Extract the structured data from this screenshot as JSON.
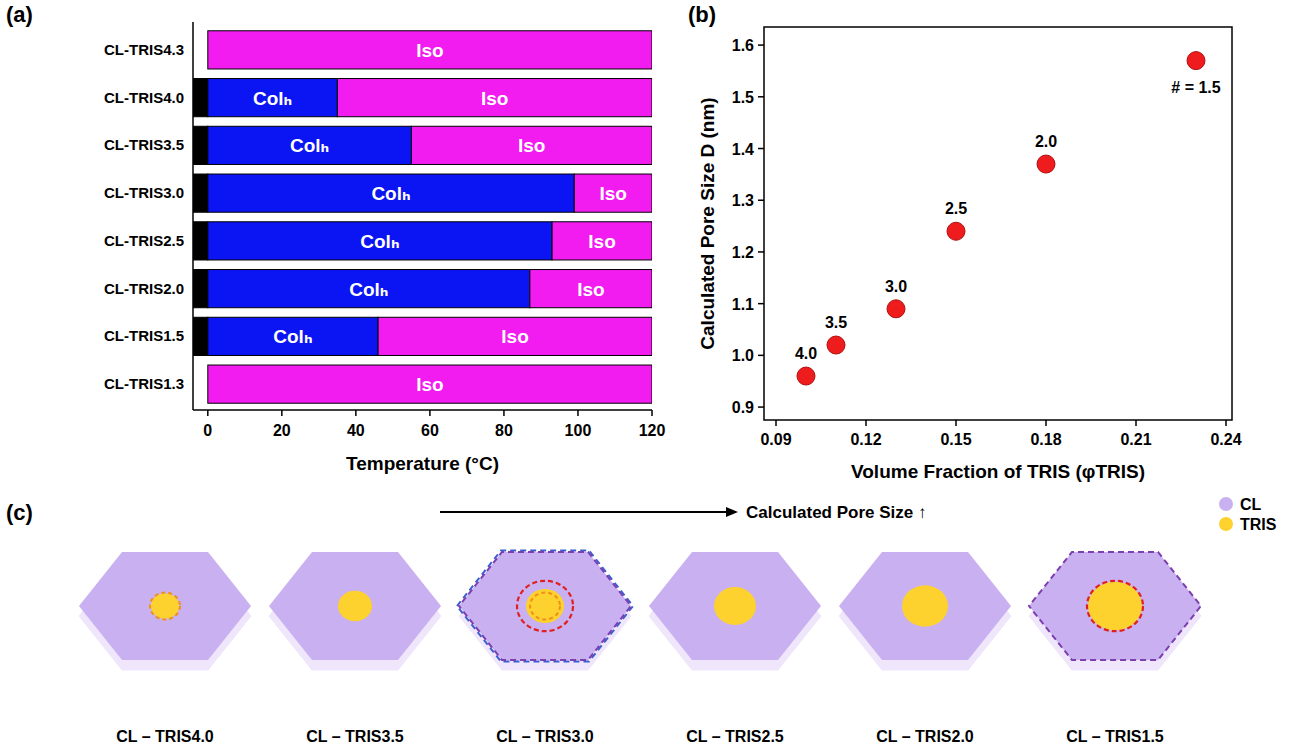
{
  "chart_data": [
    {
      "type": "bar",
      "panel_label": "(a)",
      "orientation": "horizontal",
      "stacked": true,
      "categories": [
        "CL-TRIS4.3",
        "CL-TRIS4.0",
        "CL-TRIS3.5",
        "CL-TRIS3.0",
        "CL-TRIS2.5",
        "CL-TRIS2.0",
        "CL-TRIS1.5",
        "CL-TRIS1.3"
      ],
      "series": [
        {
          "color": "#000000",
          "values": [
            null,
            -4,
            -4,
            -4,
            -4,
            -4,
            -4,
            null
          ]
        },
        {
          "name": "Colₕ",
          "color": "#0b14f2",
          "values": [
            null,
            35,
            55,
            99,
            93,
            87,
            46,
            null
          ]
        },
        {
          "name": "Iso",
          "color": "#f21cf0",
          "values": [
            120,
            85,
            65,
            21,
            27,
            33,
            74,
            120
          ]
        }
      ],
      "xlabel": "Temperature (°C)",
      "xlim": [
        -4,
        120
      ],
      "xticks": [
        0,
        20,
        40,
        60,
        80,
        100,
        120
      ]
    },
    {
      "type": "scatter",
      "panel_label": "(b)",
      "xlabel": "Volume Fraction of TRIS (φTRIS)",
      "ylabel": "Calculated Pore Size D (nm)",
      "xlim": [
        0.086,
        0.242
      ],
      "ylim": [
        0.875,
        1.635
      ],
      "xticks": [
        0.09,
        0.12,
        0.15,
        0.18,
        0.21,
        0.24
      ],
      "yticks": [
        0.9,
        {
          "value": 1,
          "label": "1.0"
        },
        1.1,
        1.2,
        1.3,
        1.4,
        1.5,
        1.6
      ],
      "series": [
        {
          "color": "#ee1c1c",
          "marker": "circle",
          "x": [
            0.1,
            0.11,
            0.13,
            0.15,
            0.18,
            0.23
          ],
          "values": [
            0.96,
            1.02,
            1.09,
            1.24,
            1.37,
            1.57
          ],
          "point_labels": [
            "4.0",
            "3.5",
            "3.0",
            "2.5",
            "2.0",
            "# = 1.5"
          ]
        }
      ]
    }
  ],
  "diagram": {
    "panel_label": "(c)",
    "title": "Calculated Pore Size ↑",
    "legend": [
      {
        "label": "CL",
        "color": "#c9b0f0"
      },
      {
        "label": "TRIS",
        "color": "#fdd22f"
      }
    ],
    "items": [
      "CL – TRIS4.0",
      "CL – TRIS3.5",
      "CL – TRIS3.0",
      "CL – TRIS2.5",
      "CL – TRIS2.0",
      "CL – TRIS1.5"
    ]
  }
}
